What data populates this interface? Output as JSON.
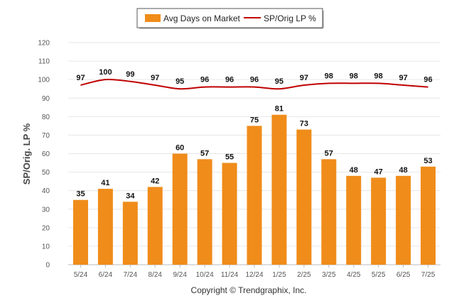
{
  "chart_data": {
    "type": "bar",
    "categories": [
      "5/24",
      "6/24",
      "7/24",
      "8/24",
      "9/24",
      "10/24",
      "11/24",
      "12/24",
      "1/25",
      "2/25",
      "3/25",
      "4/25",
      "5/25",
      "6/25",
      "7/25"
    ],
    "series": [
      {
        "name": "Avg Days on Market",
        "type": "bar",
        "color": "#f08c1a",
        "values": [
          35,
          41,
          34,
          42,
          60,
          57,
          55,
          75,
          81,
          73,
          57,
          48,
          47,
          48,
          53
        ]
      },
      {
        "name": "SP/Orig LP %",
        "type": "line",
        "color": "#c00000",
        "values": [
          97,
          100,
          99,
          97,
          95,
          96,
          96,
          96,
          95,
          97,
          98,
          98,
          98,
          97,
          96
        ]
      }
    ],
    "ylabel": "SP/Orig. LP %",
    "ylim": [
      0,
      120
    ],
    "yticks": [
      0,
      10,
      20,
      30,
      40,
      50,
      60,
      70,
      80,
      90,
      100,
      110,
      120
    ],
    "grid": true,
    "legend_position": "top-center"
  },
  "footer": {
    "copyright": "Copyright © Trendgraphix, Inc."
  }
}
